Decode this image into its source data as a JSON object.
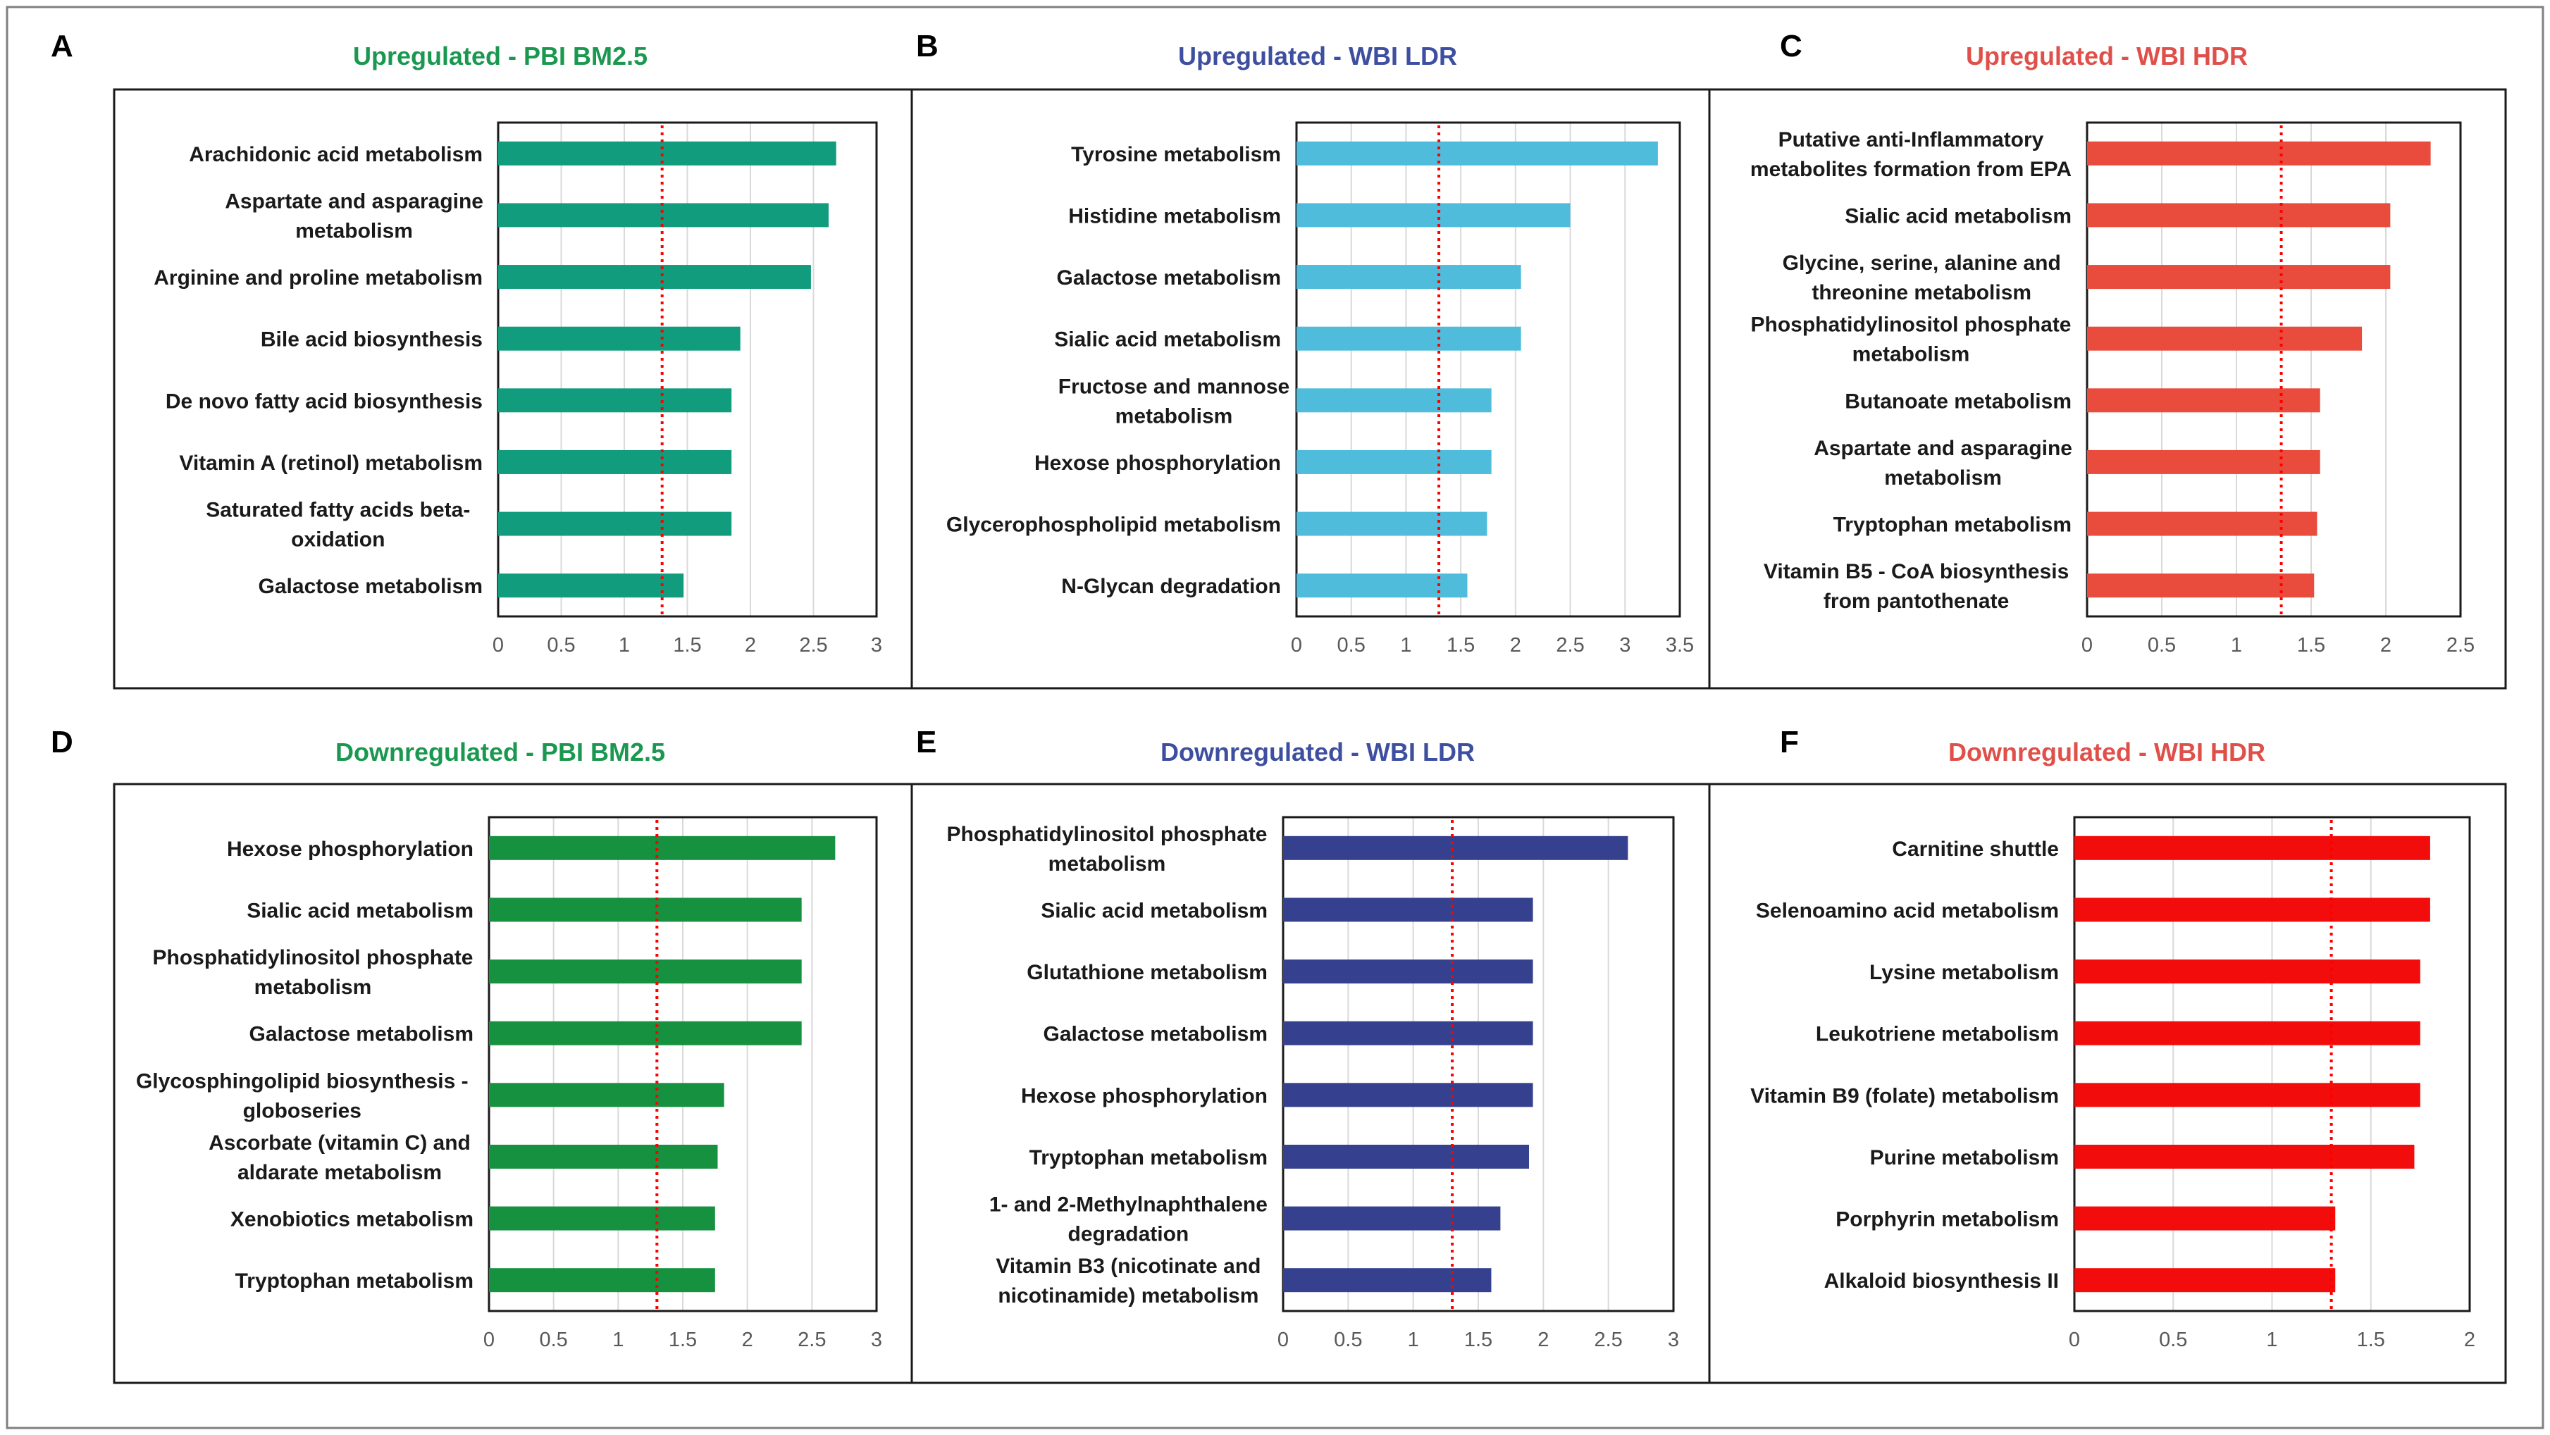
{
  "threshold": 1.3,
  "chart_data": [
    {
      "type": "bar",
      "orientation": "horizontal",
      "letter": "A",
      "title": "Upregulated - PBI BM2.5",
      "color": "#119C7D",
      "title_color": "#1A9850",
      "categories": [
        [
          "Arachidonic acid metabolism"
        ],
        [
          "Aspartate and asparagine",
          "metabolism"
        ],
        [
          "Arginine and proline metabolism"
        ],
        [
          "Bile acid biosynthesis"
        ],
        [
          "De novo fatty acid biosynthesis"
        ],
        [
          "Vitamin A (retinol) metabolism"
        ],
        [
          "Saturated fatty acids beta-",
          "oxidation"
        ],
        [
          "Galactose metabolism"
        ]
      ],
      "values": [
        2.68,
        2.62,
        2.48,
        1.92,
        1.85,
        1.85,
        1.85,
        1.47
      ],
      "xlim": [
        0,
        3
      ],
      "ticks": [
        0,
        0.5,
        1,
        1.5,
        2,
        2.5,
        3
      ],
      "tick_labels": [
        "0",
        "0.5",
        "1",
        "1.5",
        "2",
        "2.5",
        "3"
      ]
    },
    {
      "type": "bar",
      "orientation": "horizontal",
      "letter": "B",
      "title": "Upregulated - WBI LDR",
      "color": "#4FBCDC",
      "title_color": "#3E4FA0",
      "categories": [
        [
          "Tyrosine metabolism"
        ],
        [
          "Histidine metabolism"
        ],
        [
          "Galactose metabolism"
        ],
        [
          "Sialic acid metabolism"
        ],
        [
          "Fructose and mannose",
          "metabolism"
        ],
        [
          "Hexose phosphorylation"
        ],
        [
          "Glycerophospholipid metabolism"
        ],
        [
          "N-Glycan degradation"
        ]
      ],
      "values": [
        3.3,
        2.5,
        2.05,
        2.05,
        1.78,
        1.78,
        1.74,
        1.56
      ],
      "xlim": [
        0,
        3.5
      ],
      "ticks": [
        0,
        0.5,
        1,
        1.5,
        2,
        2.5,
        3,
        3.5
      ],
      "tick_labels": [
        "0",
        "0.5",
        "1",
        "1.5",
        "2",
        "2.5",
        "3",
        "3.5"
      ]
    },
    {
      "type": "bar",
      "orientation": "horizontal",
      "letter": "C",
      "title": "Upregulated - WBI HDR",
      "color": "#E94B3C",
      "title_color": "#E0504A",
      "categories": [
        [
          "Putative anti-Inflammatory",
          "metabolites formation from EPA"
        ],
        [
          "Sialic acid metabolism"
        ],
        [
          "Glycine, serine, alanine and",
          "threonine metabolism"
        ],
        [
          "Phosphatidylinositol phosphate",
          "metabolism"
        ],
        [
          "Butanoate metabolism"
        ],
        [
          "Aspartate and asparagine",
          "metabolism"
        ],
        [
          "Tryptophan metabolism"
        ],
        [
          "Vitamin B5 - CoA biosynthesis",
          "from pantothenate"
        ]
      ],
      "values": [
        2.3,
        2.03,
        2.03,
        1.84,
        1.56,
        1.56,
        1.54,
        1.52
      ],
      "xlim": [
        0,
        2.5
      ],
      "ticks": [
        0,
        0.5,
        1,
        1.5,
        2,
        2.5
      ],
      "tick_labels": [
        "0",
        "0.5",
        "1",
        "1.5",
        "2",
        "2.5"
      ]
    },
    {
      "type": "bar",
      "orientation": "horizontal",
      "letter": "D",
      "title": "Downregulated - PBI BM2.5",
      "color": "#16913F",
      "title_color": "#1A9850",
      "categories": [
        [
          "Hexose phosphorylation"
        ],
        [
          "Sialic acid metabolism"
        ],
        [
          "Phosphatidylinositol phosphate",
          "metabolism"
        ],
        [
          "Galactose metabolism"
        ],
        [
          "Glycosphingolipid biosynthesis -",
          "globoseries"
        ],
        [
          "Ascorbate (vitamin C) and",
          "aldarate metabolism"
        ],
        [
          "Xenobiotics metabolism"
        ],
        [
          "Tryptophan metabolism"
        ]
      ],
      "values": [
        2.68,
        2.42,
        2.42,
        2.42,
        1.82,
        1.77,
        1.75,
        1.75
      ],
      "xlim": [
        0,
        3
      ],
      "ticks": [
        0,
        0.5,
        1,
        1.5,
        2,
        2.5,
        3
      ],
      "tick_labels": [
        "0",
        "0.5",
        "1",
        "1.5",
        "2",
        "2.5",
        "3"
      ]
    },
    {
      "type": "bar",
      "orientation": "horizontal",
      "letter": "E",
      "title": "Downregulated - WBI LDR",
      "color": "#35418E",
      "title_color": "#3E4FA0",
      "categories": [
        [
          "Phosphatidylinositol phosphate",
          "metabolism"
        ],
        [
          "Sialic acid metabolism"
        ],
        [
          "Glutathione metabolism"
        ],
        [
          "Galactose metabolism"
        ],
        [
          "Hexose phosphorylation"
        ],
        [
          "Tryptophan metabolism"
        ],
        [
          "1- and 2-Methylnaphthalene",
          "degradation"
        ],
        [
          "Vitamin B3 (nicotinate and",
          "nicotinamide) metabolism"
        ]
      ],
      "values": [
        2.65,
        1.92,
        1.92,
        1.92,
        1.92,
        1.89,
        1.67,
        1.6
      ],
      "xlim": [
        0,
        3
      ],
      "ticks": [
        0,
        0.5,
        1,
        1.5,
        2,
        2.5,
        3
      ],
      "tick_labels": [
        "0",
        "0.5",
        "1",
        "1.5",
        "2",
        "2.5",
        "3"
      ]
    },
    {
      "type": "bar",
      "orientation": "horizontal",
      "letter": "F",
      "title": "Downregulated - WBI HDR",
      "color": "#F20C0C",
      "title_color": "#E0504A",
      "categories": [
        [
          "Carnitine shuttle"
        ],
        [
          "Selenoamino acid metabolism"
        ],
        [
          "Lysine metabolism"
        ],
        [
          "Leukotriene metabolism"
        ],
        [
          "Vitamin B9 (folate) metabolism"
        ],
        [
          "Purine metabolism"
        ],
        [
          "Porphyrin metabolism"
        ],
        [
          "Alkaloid biosynthesis II"
        ]
      ],
      "values": [
        1.8,
        1.8,
        1.75,
        1.75,
        1.75,
        1.72,
        1.32,
        1.32
      ],
      "xlim": [
        0,
        2
      ],
      "ticks": [
        0,
        0.5,
        1,
        1.5,
        2
      ],
      "tick_labels": [
        "0",
        "0.5",
        "1",
        "1.5",
        "2"
      ]
    }
  ]
}
